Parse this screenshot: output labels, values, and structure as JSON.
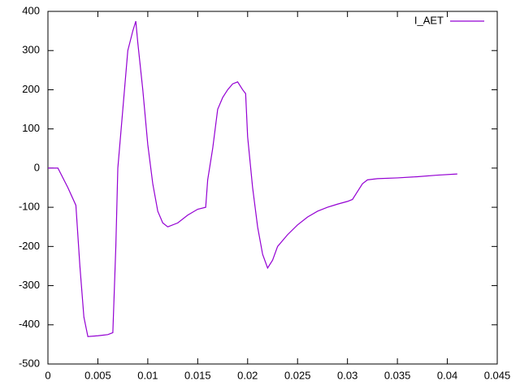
{
  "chart_data": {
    "type": "line",
    "x": [
      0,
      0.001,
      0.002,
      0.0028,
      0.0032,
      0.0036,
      0.004,
      0.005,
      0.006,
      0.0065,
      0.0068,
      0.007,
      0.0075,
      0.008,
      0.0085,
      0.0088,
      0.009,
      0.0095,
      0.01,
      0.0105,
      0.011,
      0.0115,
      0.012,
      0.013,
      0.014,
      0.015,
      0.0158,
      0.016,
      0.0165,
      0.017,
      0.0175,
      0.018,
      0.0185,
      0.019,
      0.0195,
      0.0198,
      0.02,
      0.0205,
      0.021,
      0.0215,
      0.022,
      0.0225,
      0.023,
      0.024,
      0.025,
      0.026,
      0.027,
      0.028,
      0.029,
      0.03,
      0.0305,
      0.031,
      0.0315,
      0.032,
      0.033,
      0.035,
      0.037,
      0.039,
      0.041
    ],
    "series": [
      {
        "name": "I_AET",
        "color": "#9400d3",
        "values": [
          0,
          0,
          -50,
          -95,
          -250,
          -380,
          -430,
          -428,
          -425,
          -420,
          -200,
          0,
          150,
          300,
          350,
          375,
          320,
          200,
          60,
          -40,
          -110,
          -140,
          -150,
          -140,
          -120,
          -105,
          -100,
          -30,
          50,
          150,
          180,
          200,
          215,
          220,
          200,
          190,
          80,
          -50,
          -150,
          -220,
          -255,
          -235,
          -200,
          -170,
          -145,
          -125,
          -110,
          -100,
          -92,
          -85,
          -80,
          -60,
          -40,
          -30,
          -27,
          -25,
          -22,
          -18,
          -15
        ]
      }
    ],
    "xlim": [
      0,
      0.045
    ],
    "xticks": [
      0,
      0.005,
      0.01,
      0.015,
      0.02,
      0.025,
      0.03,
      0.035,
      0.04,
      0.045
    ],
    "ylim": [
      -500,
      400
    ],
    "yticks": [
      -500,
      -400,
      -300,
      -200,
      -100,
      0,
      100,
      200,
      300,
      400
    ],
    "grid": false,
    "legend": "top-right"
  }
}
